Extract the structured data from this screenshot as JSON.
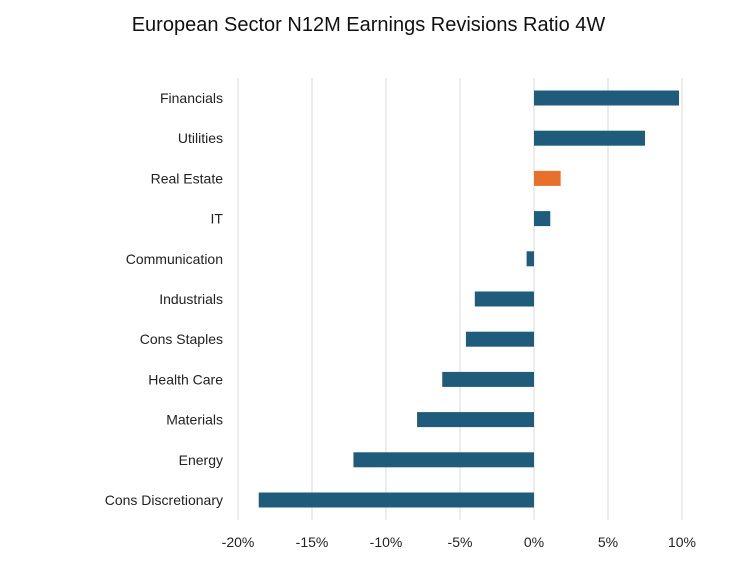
{
  "chart_data": {
    "type": "bar",
    "orientation": "horizontal",
    "title": "European Sector N12M Earnings Revisions Ratio 4W",
    "xlabel": "",
    "ylabel": "",
    "categories": [
      "Financials",
      "Utilities",
      "Real Estate",
      "IT",
      "Communication",
      "Industrials",
      "Cons Staples",
      "Health Care",
      "Materials",
      "Energy",
      "Cons Discretionary"
    ],
    "values": [
      9.8,
      7.5,
      1.8,
      1.1,
      -0.5,
      -4.0,
      -4.6,
      -6.2,
      -7.9,
      -12.2,
      -18.6
    ],
    "highlight": "Real Estate",
    "xlim": [
      -20,
      10
    ],
    "x_ticks": [
      -20,
      -15,
      -10,
      -5,
      0,
      5,
      10
    ],
    "x_tick_labels": [
      "-20%",
      "-15%",
      "-10%",
      "-5%",
      "0%",
      "5%",
      "10%"
    ],
    "grid": "vertical",
    "colors": {
      "bar": "#1f5b7a",
      "highlight": "#e8702a",
      "grid": "#d9d9d9"
    }
  }
}
